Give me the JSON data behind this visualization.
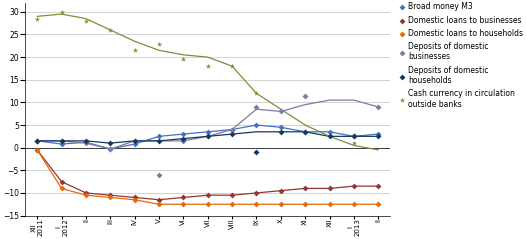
{
  "x_labels": [
    "XII\n2011",
    "I\n2012",
    "II",
    "III",
    "IV",
    "V",
    "VI",
    "VII",
    "VIII",
    "IX",
    "X",
    "XI",
    "XII",
    "I\n2013",
    "II"
  ],
  "broad_money_line": [
    1.5,
    0.8,
    1.2,
    -0.3,
    0.8,
    2.5,
    3.0,
    3.5,
    4.0,
    5.0,
    4.5,
    3.5,
    3.5,
    2.5,
    3.0
  ],
  "broad_money_scatter": [
    1.5,
    0.8,
    1.2,
    -0.3,
    0.8,
    2.5,
    3.0,
    3.5,
    4.0,
    5.0,
    4.5,
    3.5,
    3.5,
    2.5,
    3.0
  ],
  "dom_loans_biz_line": [
    -0.5,
    -7.5,
    -10.0,
    -10.5,
    -11.0,
    -11.5,
    -11.0,
    -10.5,
    -10.5,
    -10.0,
    -9.5,
    -9.0,
    -9.0,
    -8.5,
    -8.5
  ],
  "dom_loans_biz_scatter": [
    -0.5,
    -7.5,
    -10.0,
    -10.5,
    -11.0,
    -11.5,
    -11.0,
    -10.5,
    -10.5,
    -10.0,
    -9.5,
    -9.0,
    -9.0,
    -8.5,
    -8.5
  ],
  "dom_loans_hh_line": [
    -0.5,
    -9.0,
    -10.5,
    -11.0,
    -11.5,
    -12.5,
    -12.5,
    -12.5,
    -12.5,
    -12.5,
    -12.5,
    -12.5,
    -12.5,
    -12.5,
    -12.5
  ],
  "dom_loans_hh_scatter": [
    -0.5,
    -9.0,
    -10.5,
    -11.0,
    -11.5,
    -12.5,
    -12.5,
    -12.5,
    -12.5,
    -12.5,
    -12.5,
    -12.5,
    -12.5,
    -12.5,
    -12.5
  ],
  "dep_dom_biz_line": [
    1.5,
    1.5,
    1.0,
    -0.3,
    1.5,
    1.5,
    1.5,
    2.5,
    4.0,
    8.5,
    8.0,
    9.5,
    10.5,
    10.5,
    9.0
  ],
  "dep_dom_biz_scatter": [
    1.5,
    1.5,
    1.0,
    -0.3,
    1.5,
    -6.0,
    1.5,
    2.5,
    4.0,
    9.0,
    8.0,
    11.5,
    null,
    null,
    9.0
  ],
  "dep_dom_hh_line": [
    1.5,
    1.5,
    1.5,
    1.0,
    1.5,
    1.5,
    2.0,
    2.5,
    3.0,
    3.5,
    3.5,
    3.5,
    2.5,
    2.5,
    2.5
  ],
  "dep_dom_hh_scatter": [
    1.5,
    1.5,
    1.5,
    1.0,
    1.5,
    1.5,
    2.0,
    2.5,
    3.0,
    -1.0,
    3.5,
    3.5,
    2.5,
    2.5,
    2.5
  ],
  "cash_currency_line": [
    29.0,
    29.5,
    28.5,
    26.0,
    23.5,
    21.5,
    20.5,
    20.0,
    18.0,
    12.0,
    8.5,
    5.0,
    2.5,
    0.5,
    -0.5
  ],
  "cash_currency_scatter": [
    28.5,
    30.0,
    28.0,
    26.0,
    21.5,
    23.0,
    19.5,
    18.0,
    18.0,
    12.0,
    null,
    null,
    null,
    1.0,
    null
  ],
  "colors": {
    "broad_money": "#4472C4",
    "dom_loans_biz": "#943634",
    "dom_loans_hh": "#E26B0A",
    "dep_dom_biz": "#7B7BAA",
    "dep_dom_hh": "#17375E",
    "cash_currency": "#76923C"
  },
  "ylim": [
    -15,
    32
  ],
  "yticks": [
    -15,
    -10,
    -5,
    0,
    5,
    10,
    15,
    20,
    25,
    30
  ],
  "legend_labels": [
    "Broad money M3",
    "Domestic loans to businesses",
    "Domestic loans to households",
    "Deposits of domestic\nbusinesses",
    "Deposits of domestic\nhouseholds",
    "Cash currency in circulation\noutside banks"
  ]
}
